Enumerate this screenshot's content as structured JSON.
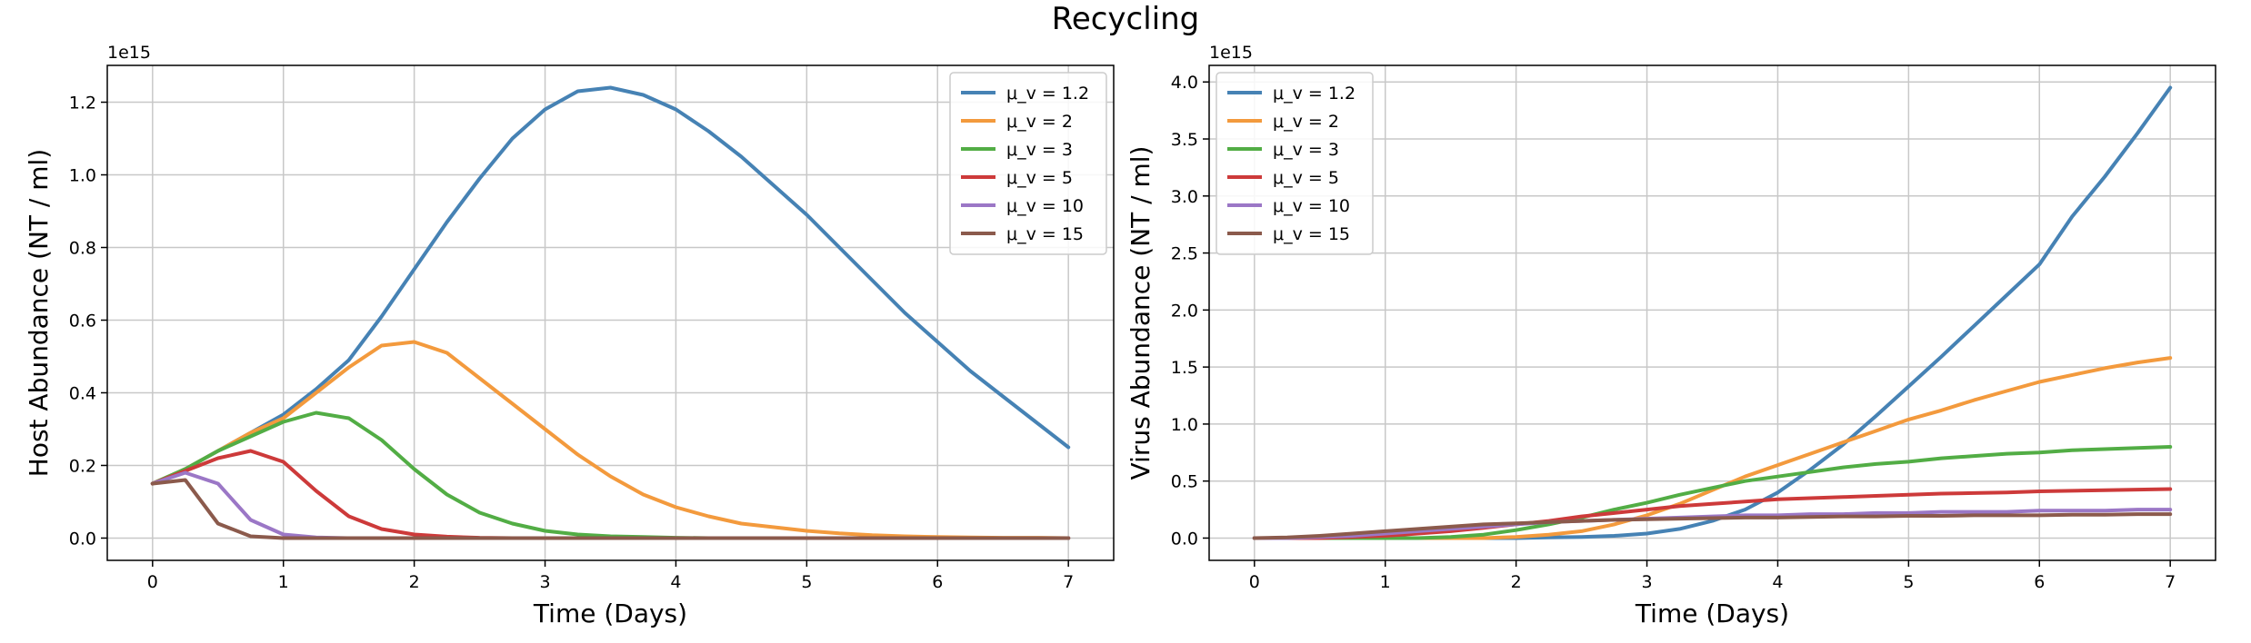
{
  "figure": {
    "title": "Recycling"
  },
  "colors": {
    "blue": "#4682b4",
    "orange": "#f39a3d",
    "green": "#52ad45",
    "red": "#cd3a3a",
    "purple": "#9b77c6",
    "brown": "#8b5a4c",
    "grid": "#c8c8c8"
  },
  "chart_data": [
    {
      "type": "line",
      "xlabel": "Time (Days)",
      "ylabel": "Host Abundance (NT / ml)",
      "offset_label": "1e15",
      "xlim": [
        0,
        7
      ],
      "ylim": [
        0,
        1.3
      ],
      "xticks": [
        "0",
        "1",
        "2",
        "3",
        "4",
        "5",
        "6",
        "7"
      ],
      "yticks": [
        "0.0",
        "0.2",
        "0.4",
        "0.6",
        "0.8",
        "1.0",
        "1.2"
      ],
      "grid": true,
      "legend_position": "top-right",
      "x": [
        0,
        0.25,
        0.5,
        0.75,
        1,
        1.25,
        1.5,
        1.75,
        2,
        2.25,
        2.5,
        2.75,
        3,
        3.25,
        3.5,
        3.75,
        4,
        4.25,
        4.5,
        4.75,
        5,
        5.25,
        5.5,
        5.75,
        6,
        6.25,
        6.5,
        6.75,
        7
      ],
      "series": [
        {
          "name": "μ_v = 1.2",
          "color": "blue",
          "values": [
            0.15,
            0.19,
            0.24,
            0.29,
            0.34,
            0.41,
            0.49,
            0.61,
            0.74,
            0.87,
            0.99,
            1.1,
            1.18,
            1.23,
            1.24,
            1.22,
            1.18,
            1.12,
            1.05,
            0.97,
            0.89,
            0.8,
            0.71,
            0.62,
            0.54,
            0.46,
            0.39,
            0.32,
            0.25
          ]
        },
        {
          "name": "μ_v = 2",
          "color": "orange",
          "values": [
            0.15,
            0.19,
            0.24,
            0.29,
            0.33,
            0.4,
            0.47,
            0.53,
            0.54,
            0.51,
            0.44,
            0.37,
            0.3,
            0.23,
            0.17,
            0.12,
            0.085,
            0.06,
            0.04,
            0.03,
            0.02,
            0.013,
            0.008,
            0.005,
            0.003,
            0.002,
            0.001,
            0.001,
            0
          ]
        },
        {
          "name": "μ_v = 3",
          "color": "green",
          "values": [
            0.15,
            0.19,
            0.24,
            0.28,
            0.32,
            0.345,
            0.33,
            0.27,
            0.19,
            0.12,
            0.07,
            0.04,
            0.02,
            0.01,
            0.005,
            0.003,
            0.001,
            0,
            0,
            0,
            0,
            0,
            0,
            0,
            0,
            0,
            0,
            0,
            0
          ]
        },
        {
          "name": "μ_v = 5",
          "color": "red",
          "values": [
            0.15,
            0.185,
            0.22,
            0.24,
            0.21,
            0.13,
            0.06,
            0.025,
            0.01,
            0.004,
            0.001,
            0,
            0,
            0,
            0,
            0,
            0,
            0,
            0,
            0,
            0,
            0,
            0,
            0,
            0,
            0,
            0,
            0,
            0
          ]
        },
        {
          "name": "μ_v = 10",
          "color": "purple",
          "values": [
            0.15,
            0.18,
            0.15,
            0.05,
            0.01,
            0.002,
            0,
            0,
            0,
            0,
            0,
            0,
            0,
            0,
            0,
            0,
            0,
            0,
            0,
            0,
            0,
            0,
            0,
            0,
            0,
            0,
            0,
            0,
            0
          ]
        },
        {
          "name": "μ_v = 15",
          "color": "brown",
          "values": [
            0.15,
            0.16,
            0.04,
            0.005,
            0,
            0,
            0,
            0,
            0,
            0,
            0,
            0,
            0,
            0,
            0,
            0,
            0,
            0,
            0,
            0,
            0,
            0,
            0,
            0,
            0,
            0,
            0,
            0,
            0
          ]
        }
      ]
    },
    {
      "type": "line",
      "xlabel": "Time (Days)",
      "ylabel": "Virus Abundance (NT / ml)",
      "offset_label": "1e15",
      "xlim": [
        0,
        7
      ],
      "ylim": [
        0,
        4.0
      ],
      "xticks": [
        "0",
        "1",
        "2",
        "3",
        "4",
        "5",
        "6",
        "7"
      ],
      "yticks": [
        "0.0",
        "0.5",
        "1.0",
        "1.5",
        "2.0",
        "2.5",
        "3.0",
        "3.5",
        "4.0"
      ],
      "grid": true,
      "legend_position": "top-left",
      "x": [
        0,
        0.25,
        0.5,
        0.75,
        1,
        1.25,
        1.5,
        1.75,
        2,
        2.25,
        2.5,
        2.75,
        3,
        3.25,
        3.5,
        3.75,
        4,
        4.25,
        4.5,
        4.75,
        5,
        5.25,
        5.5,
        5.75,
        6,
        6.25,
        6.5,
        6.75,
        7
      ],
      "series": [
        {
          "name": "μ_v = 1.2",
          "color": "blue",
          "values": [
            0,
            0,
            0,
            0,
            0,
            0,
            0,
            0,
            0,
            0.005,
            0.01,
            0.02,
            0.04,
            0.08,
            0.15,
            0.25,
            0.4,
            0.6,
            0.82,
            1.07,
            1.33,
            1.59,
            1.86,
            2.13,
            2.4,
            2.82,
            3.17,
            3.55,
            3.95
          ]
        },
        {
          "name": "μ_v = 2",
          "color": "orange",
          "values": [
            0,
            0,
            0,
            0,
            0,
            0,
            0,
            0,
            0.01,
            0.03,
            0.06,
            0.12,
            0.2,
            0.3,
            0.42,
            0.54,
            0.64,
            0.74,
            0.84,
            0.94,
            1.04,
            1.12,
            1.21,
            1.29,
            1.37,
            1.43,
            1.49,
            1.54,
            1.58
          ]
        },
        {
          "name": "μ_v = 3",
          "color": "green",
          "values": [
            0,
            0,
            0,
            0,
            0,
            0,
            0.01,
            0.03,
            0.07,
            0.12,
            0.18,
            0.25,
            0.31,
            0.38,
            0.44,
            0.5,
            0.54,
            0.58,
            0.62,
            0.65,
            0.67,
            0.7,
            0.72,
            0.74,
            0.75,
            0.77,
            0.78,
            0.79,
            0.8
          ]
        },
        {
          "name": "μ_v = 5",
          "color": "red",
          "values": [
            0,
            0,
            0,
            0.01,
            0.02,
            0.04,
            0.06,
            0.09,
            0.12,
            0.15,
            0.19,
            0.22,
            0.25,
            0.28,
            0.3,
            0.32,
            0.34,
            0.35,
            0.36,
            0.37,
            0.38,
            0.39,
            0.395,
            0.4,
            0.41,
            0.415,
            0.42,
            0.425,
            0.43
          ]
        },
        {
          "name": "μ_v = 10",
          "color": "purple",
          "values": [
            0,
            0,
            0.01,
            0.02,
            0.04,
            0.06,
            0.08,
            0.1,
            0.12,
            0.14,
            0.15,
            0.16,
            0.17,
            0.18,
            0.19,
            0.2,
            0.2,
            0.21,
            0.21,
            0.22,
            0.22,
            0.23,
            0.23,
            0.23,
            0.24,
            0.24,
            0.24,
            0.25,
            0.25
          ]
        },
        {
          "name": "μ_v = 15",
          "color": "brown",
          "values": [
            0,
            0.005,
            0.02,
            0.04,
            0.06,
            0.08,
            0.1,
            0.12,
            0.13,
            0.14,
            0.15,
            0.16,
            0.165,
            0.17,
            0.175,
            0.18,
            0.18,
            0.185,
            0.19,
            0.19,
            0.195,
            0.195,
            0.2,
            0.2,
            0.2,
            0.205,
            0.205,
            0.21,
            0.21
          ]
        }
      ]
    }
  ]
}
